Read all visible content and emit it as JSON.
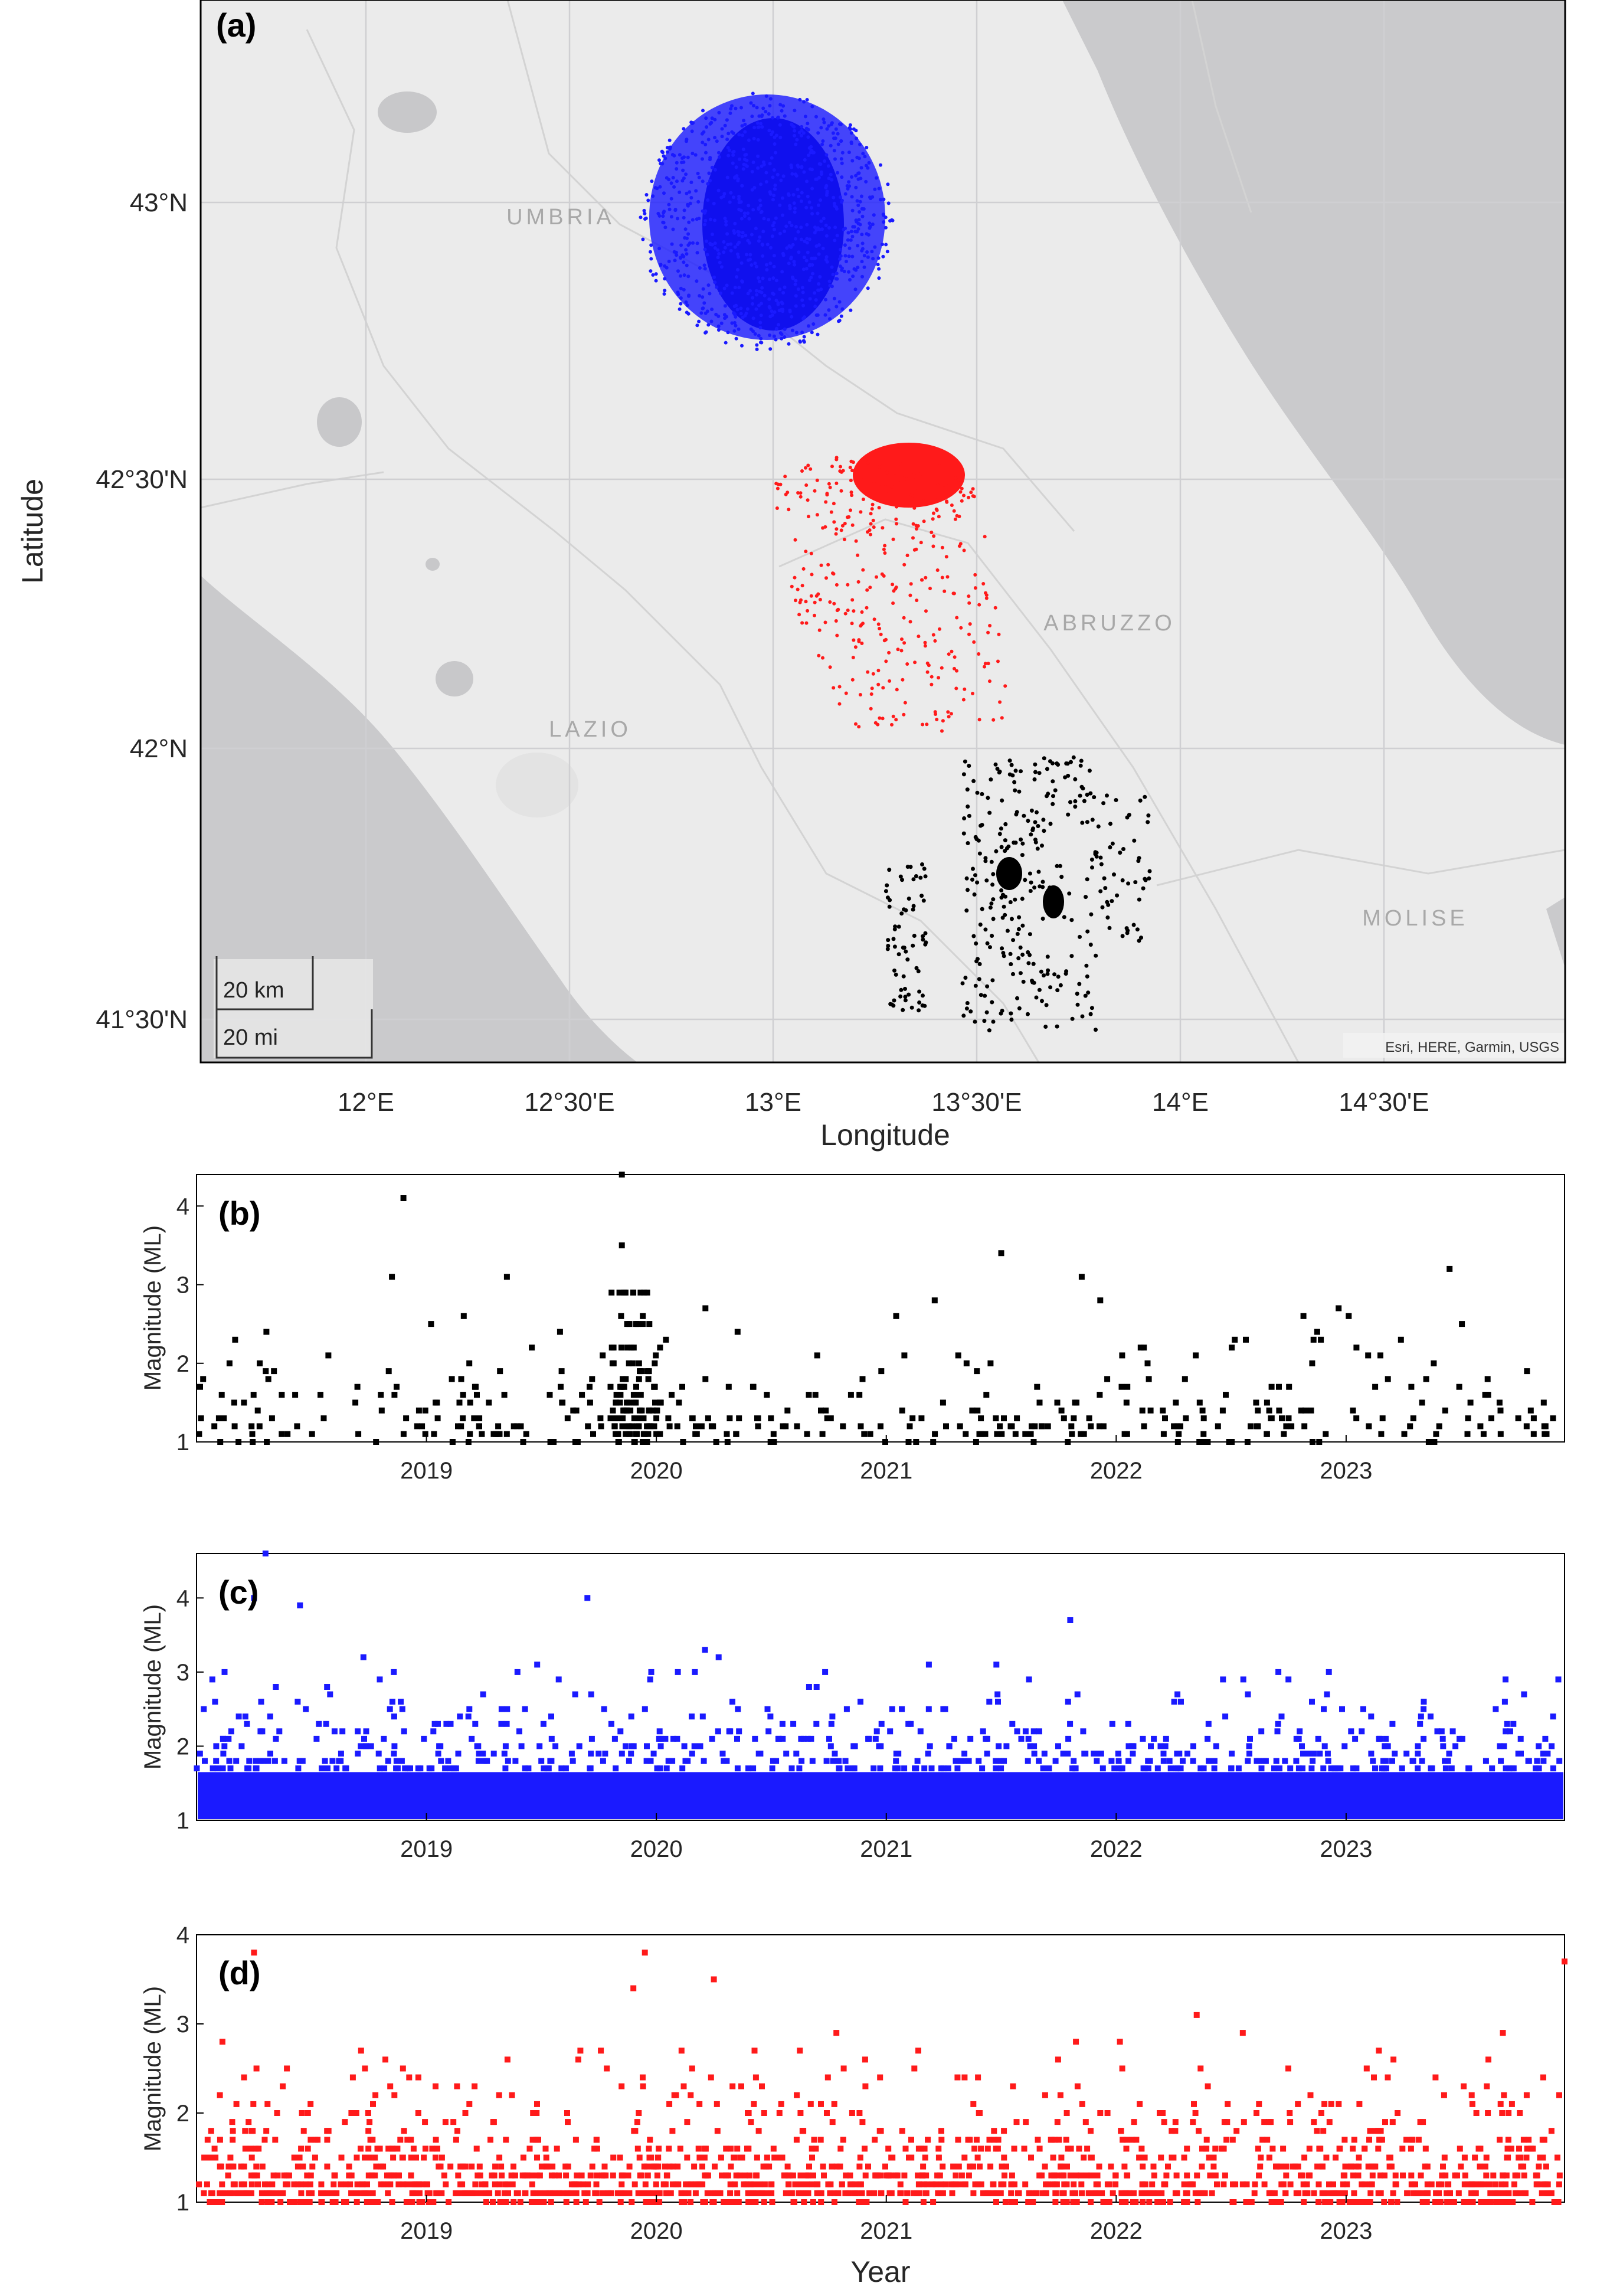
{
  "map": {
    "panel_label": "(a)",
    "xlabel": "Longitude",
    "ylabel": "Latitude",
    "lon_ticks": [
      "12°E",
      "12°30'E",
      "13°E",
      "13°30'E",
      "14°E",
      "14°30'E"
    ],
    "lat_ticks": [
      "43°N",
      "42°30'N",
      "42°N",
      "41°30'N"
    ],
    "regions": [
      "UMBRIA",
      "ABRUZZO",
      "LAZIO",
      "MOLISE"
    ],
    "scale_km": "20 km",
    "scale_mi": "20 mi",
    "attribution": "Esri, HERE, Garmin, USGS",
    "cluster_colors": {
      "north": "#1a1aff",
      "central": "#ff1a1a",
      "south": "#000000"
    }
  },
  "chart_data": [
    {
      "type": "scatter",
      "panel_label": "(b)",
      "title": "",
      "xlabel": "",
      "ylabel": "Magnitude (ML)",
      "xlim": [
        2018.0,
        2023.95
      ],
      "ylim": [
        1,
        4.4
      ],
      "xticks": [
        "2019",
        "2020",
        "2021",
        "2022",
        "2023"
      ],
      "yticks": [
        "1",
        "2",
        "3",
        "4"
      ],
      "color": "#000000",
      "notable_events": [
        {
          "x": 2018.9,
          "y": 4.1
        },
        {
          "x": 2019.85,
          "y": 4.4
        },
        {
          "x": 2019.85,
          "y": 3.5
        },
        {
          "x": 2021.5,
          "y": 3.4
        },
        {
          "x": 2023.45,
          "y": 3.2
        },
        {
          "x": 2018.85,
          "y": 3.1
        },
        {
          "x": 2019.35,
          "y": 3.1
        },
        {
          "x": 2021.85,
          "y": 3.1
        }
      ]
    },
    {
      "type": "scatter",
      "panel_label": "(c)",
      "title": "",
      "xlabel": "",
      "ylabel": "Magnitude (ML)",
      "xlim": [
        2018.0,
        2023.95
      ],
      "ylim": [
        1,
        4.6
      ],
      "xticks": [
        "2019",
        "2020",
        "2021",
        "2022",
        "2023"
      ],
      "yticks": [
        "1",
        "2",
        "3",
        "4"
      ],
      "color": "#1a1aff",
      "notable_events": [
        {
          "x": 2018.3,
          "y": 4.6
        },
        {
          "x": 2018.25,
          "y": 4.0
        },
        {
          "x": 2018.45,
          "y": 3.9
        },
        {
          "x": 2019.7,
          "y": 4.0
        },
        {
          "x": 2021.8,
          "y": 3.7
        }
      ]
    },
    {
      "type": "scatter",
      "panel_label": "(d)",
      "title": "",
      "xlabel": "Year",
      "ylabel": "Magnitude (ML)",
      "xlim": [
        2018.0,
        2023.95
      ],
      "ylim": [
        1,
        4
      ],
      "xticks": [
        "2019",
        "2020",
        "2021",
        "2022",
        "2023"
      ],
      "yticks": [
        "1",
        "2",
        "3",
        "4"
      ],
      "color": "#ff1a1a",
      "notable_events": [
        {
          "x": 2018.25,
          "y": 3.8
        },
        {
          "x": 2019.95,
          "y": 3.8
        },
        {
          "x": 2023.95,
          "y": 3.7
        },
        {
          "x": 2020.25,
          "y": 3.5
        },
        {
          "x": 2019.9,
          "y": 3.4
        },
        {
          "x": 2022.35,
          "y": 3.1
        }
      ]
    }
  ]
}
